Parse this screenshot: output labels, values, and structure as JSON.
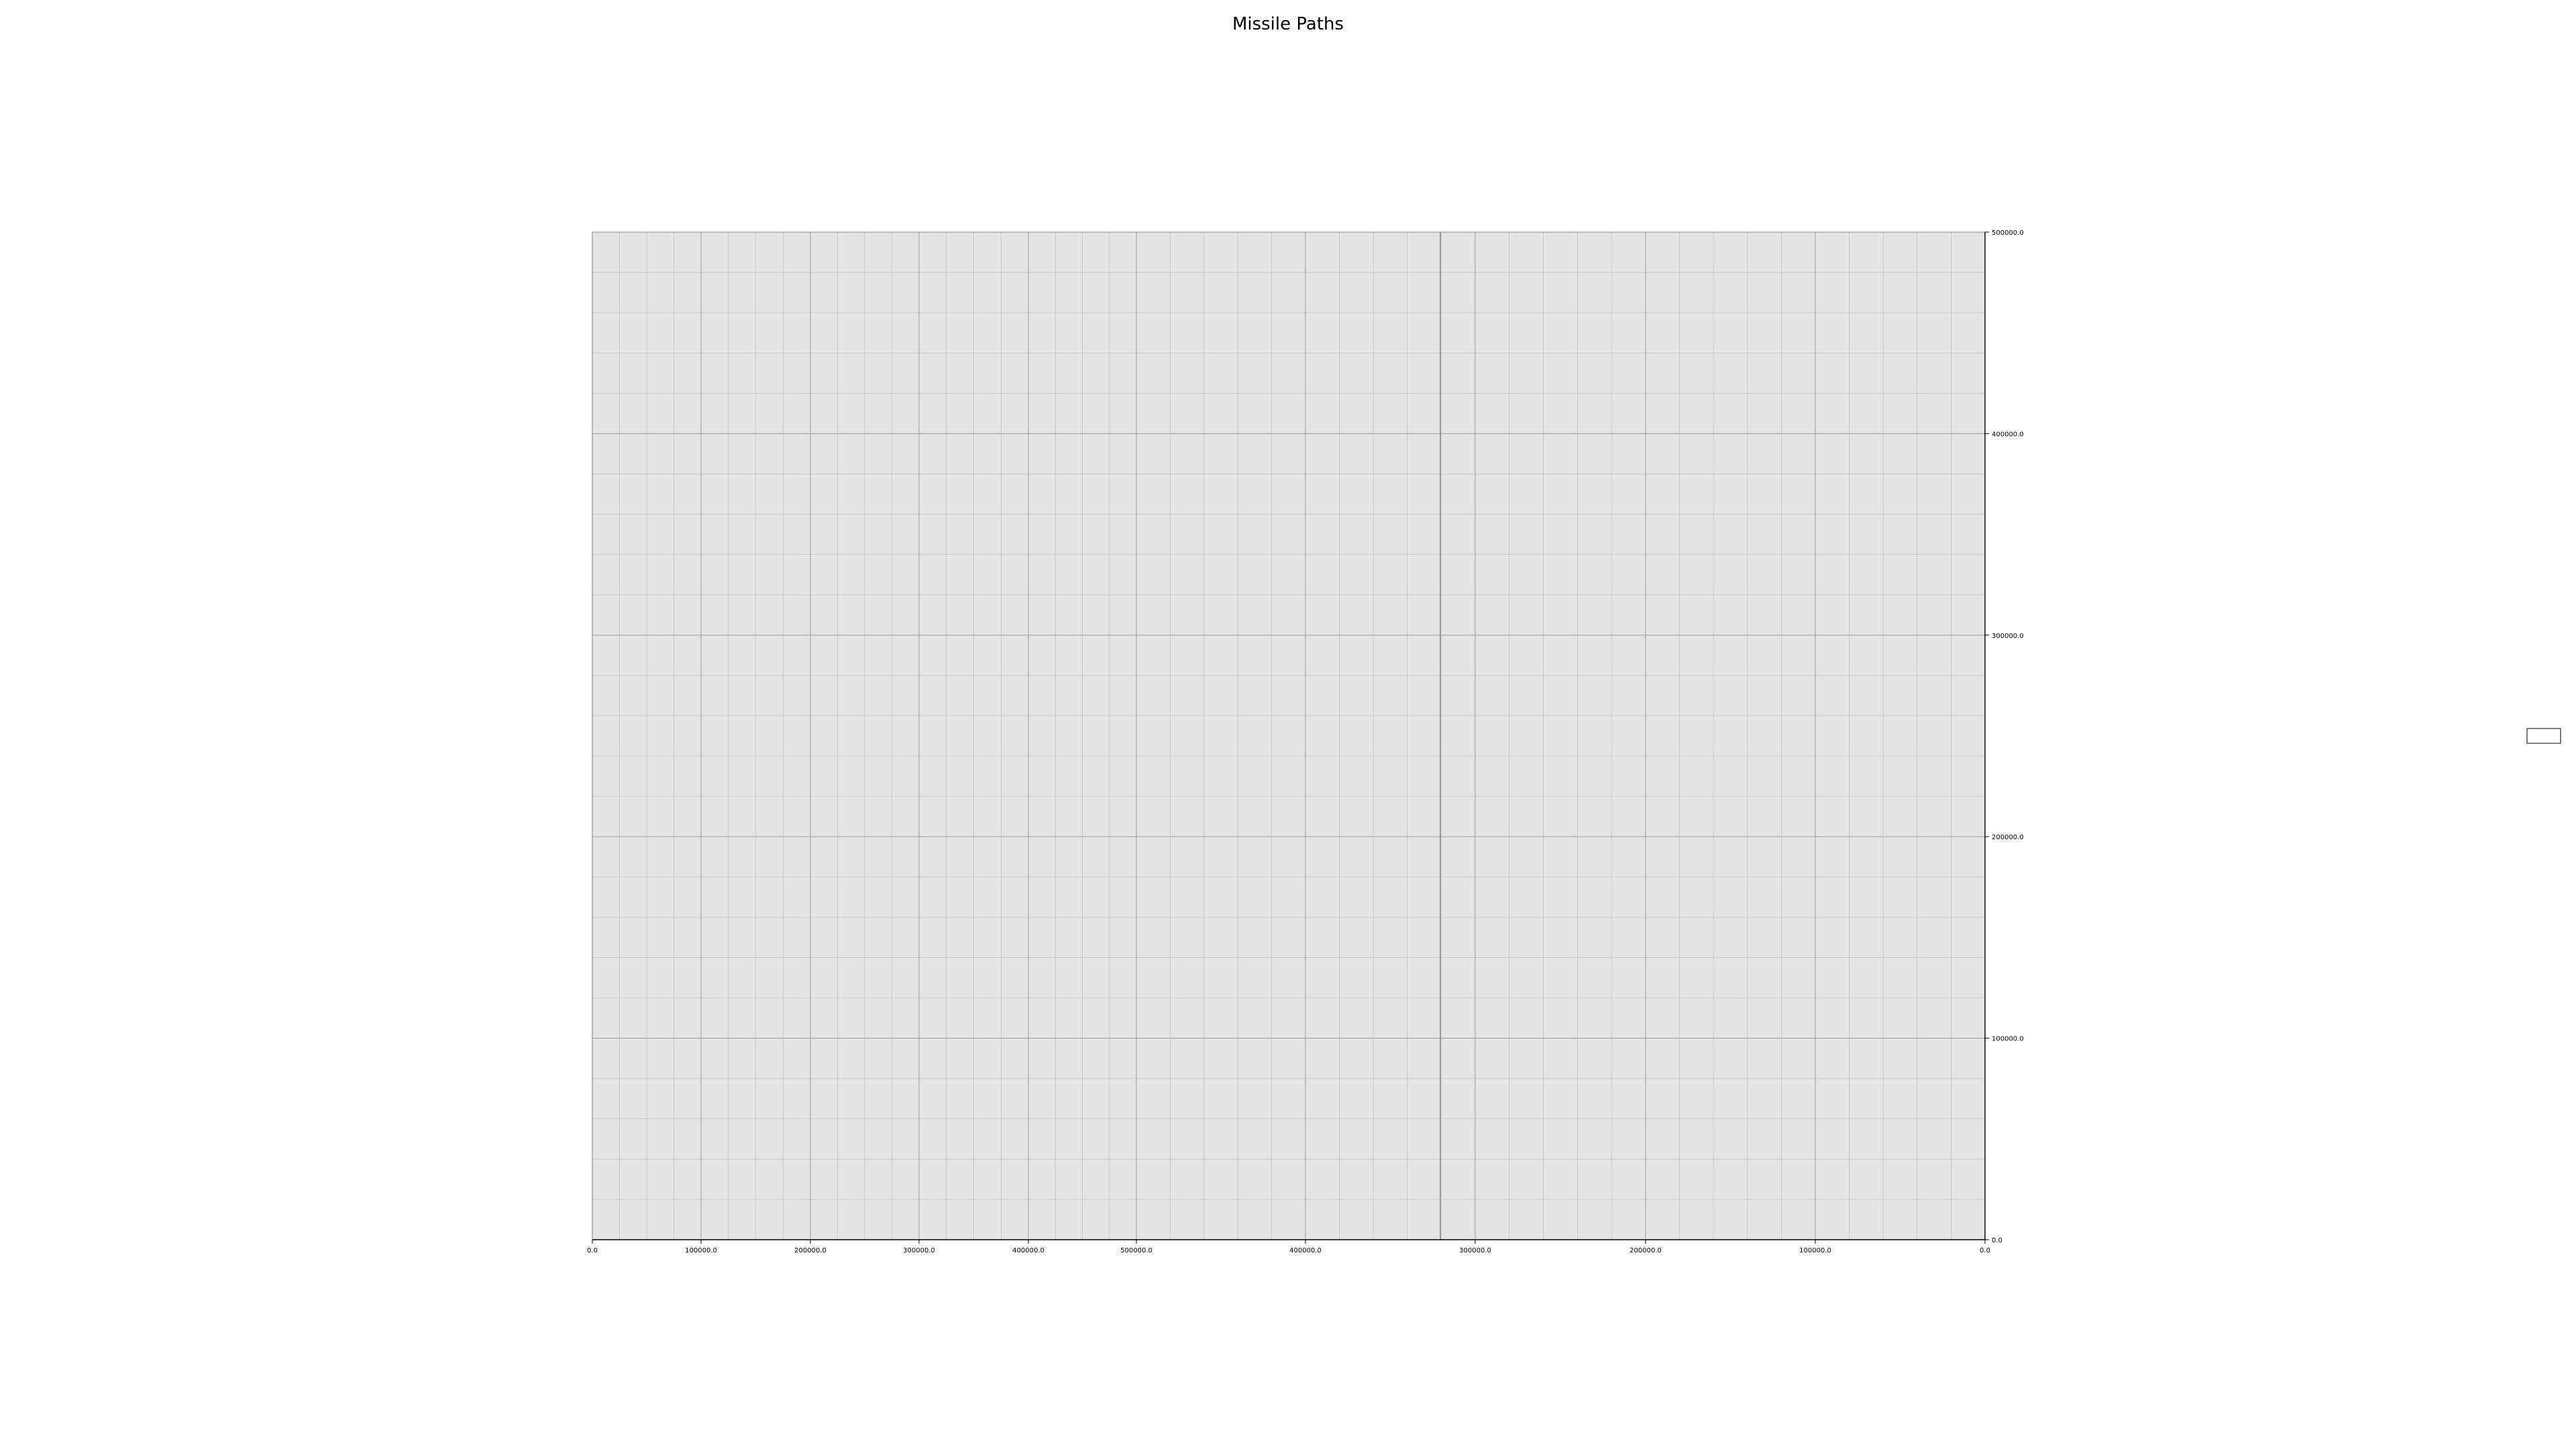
{
  "chart_data": {
    "type": "line",
    "title": "Missile Paths",
    "xlabel": "",
    "ylabel": "",
    "grid": true,
    "minor_grid": true,
    "legend": "center-right",
    "legend_entries": [],
    "background_color": "#e5e5e5",
    "grid_color": "#b0b0b0",
    "x_axis": {
      "segments": [
        {
          "tick_values": [
            0,
            100000,
            200000,
            300000,
            400000,
            500000
          ],
          "direction": "increasing"
        },
        {
          "tick_values": [
            500000,
            400000,
            300000,
            200000,
            100000,
            0
          ],
          "direction": "decreasing"
        }
      ],
      "tick_labels": [
        "0.0",
        "100000.0",
        "200000.0",
        "300000.0",
        "400000.0",
        "500000.0",
        "400000.0",
        "300000.0",
        "200000.0",
        "100000.0",
        "0.0"
      ]
    },
    "y_axis": {
      "position": "right",
      "ylim": [
        0,
        500000
      ],
      "tick_values": [
        0,
        100000,
        200000,
        300000,
        400000,
        500000
      ],
      "tick_labels": [
        "0.0",
        "100000.0",
        "200000.0",
        "300000.0",
        "400000.0",
        "500000.0"
      ]
    },
    "series": []
  }
}
